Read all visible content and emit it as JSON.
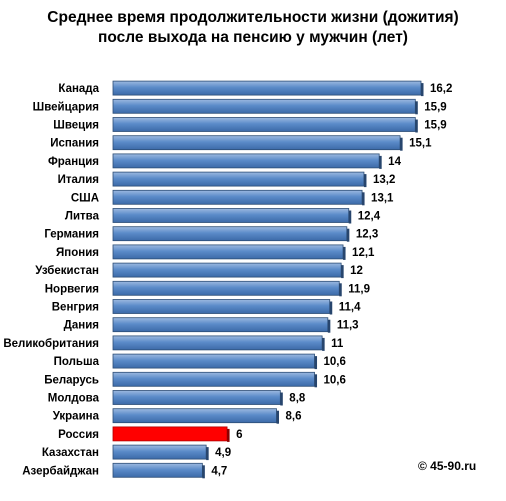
{
  "chart_data": {
    "type": "bar",
    "orientation": "horizontal",
    "title": "Среднее время продолжительности жизни (дожития) после выхода на пенсию у мужчин (лет)",
    "title_lines": [
      "Среднее время продолжительности жизни (дожития)",
      "после выхода на пенсию у мужчин (лет)"
    ],
    "categories": [
      "Канада",
      "Швейцария",
      "Швеция",
      "Испания",
      "Франция",
      "Италия",
      "США",
      "Литва",
      "Германия",
      "Япония",
      "Узбекистан",
      "Норвегия",
      "Венгрия",
      "Дания",
      "Великобритания",
      "Польша",
      "Беларусь",
      "Молдова",
      "Украина",
      "Россия",
      "Казахстан",
      "Азербайджан"
    ],
    "values": [
      16.2,
      15.9,
      15.9,
      15.1,
      14,
      13.2,
      13.1,
      12.4,
      12.3,
      12.1,
      12,
      11.9,
      11.4,
      11.3,
      11,
      10.6,
      10.6,
      8.8,
      8.6,
      6,
      4.9,
      4.7
    ],
    "value_labels": [
      "16,2",
      "15,9",
      "15,9",
      "15,1",
      "14",
      "13,2",
      "13,1",
      "12,4",
      "12,3",
      "12,1",
      "12",
      "11,9",
      "11,4",
      "11,3",
      "11",
      "10,6",
      "10,6",
      "8,8",
      "8,6",
      "6",
      "4,9",
      "4,7"
    ],
    "highlight_category": "Россия",
    "xlim": [
      0,
      16.2
    ],
    "grid": false,
    "legend": "none",
    "colors": {
      "bar": "#4f81bd",
      "bar_edge": "#2c4d75",
      "highlight": "#ff0000",
      "highlight_edge": "#b00000"
    }
  },
  "watermark": "© 45-90.ru"
}
